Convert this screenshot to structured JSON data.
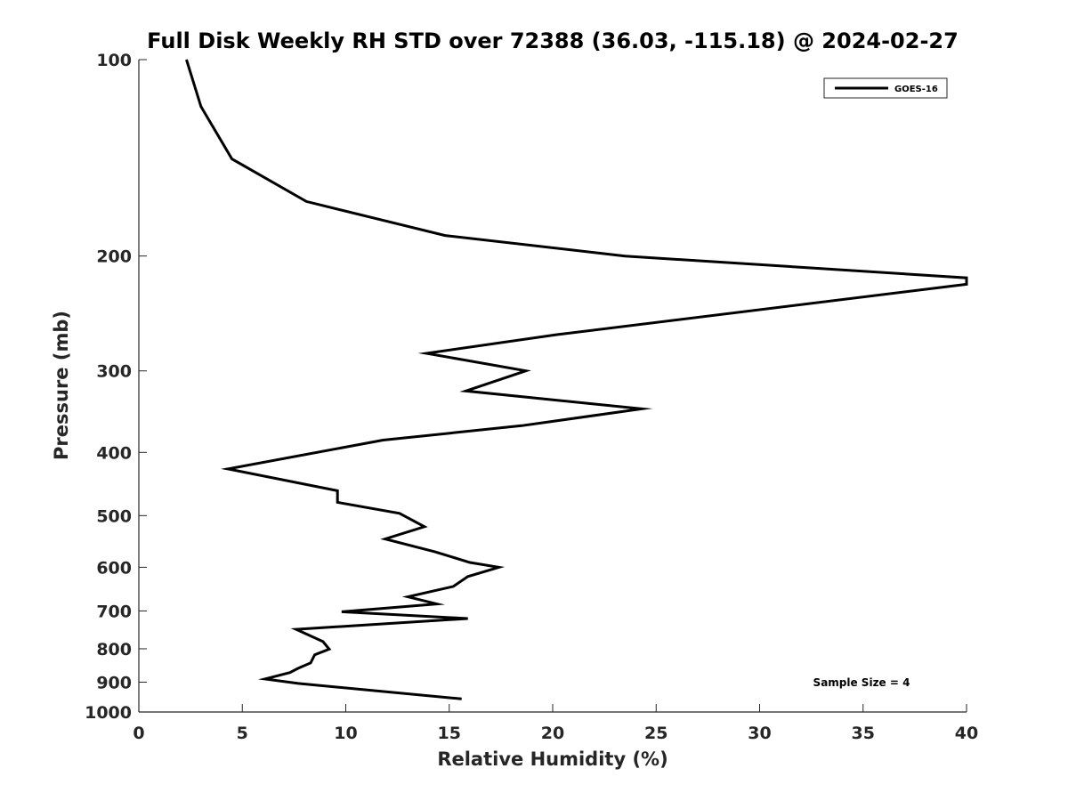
{
  "chart_data": {
    "type": "line",
    "title": "Full Disk Weekly RH STD over 72388 (36.03, -115.18) @ 2024-02-27",
    "xlabel": "Relative Humidity (%)",
    "ylabel": "Pressure (mb)",
    "xlim": [
      0,
      40
    ],
    "ylim": [
      100,
      1000
    ],
    "y_scale": "log",
    "y_reversed": true,
    "grid": false,
    "legend_position": "top-right",
    "x_ticks": [
      0,
      5,
      10,
      15,
      20,
      25,
      30,
      35,
      40
    ],
    "x_tick_labels": [
      "0",
      "5",
      "10",
      "15",
      "20",
      "25",
      "30",
      "35",
      "40"
    ],
    "y_ticks": [
      100,
      200,
      300,
      400,
      500,
      600,
      700,
      800,
      900,
      1000
    ],
    "y_tick_labels": [
      "100",
      "200",
      "300",
      "400",
      "500",
      "600",
      "700",
      "800",
      "900",
      "1000"
    ],
    "series": [
      {
        "name": "GOES-16",
        "color": "#000000",
        "x": [
          2.3,
          3.0,
          4.5,
          8.1,
          14.8,
          23.5,
          40.0,
          40.0,
          20.2,
          13.9,
          18.7,
          15.8,
          24.3,
          18.5,
          11.8,
          4.3,
          9.6,
          9.6,
          12.6,
          13.8,
          11.9,
          14.3,
          16.0,
          17.4,
          15.9,
          15.2,
          13.0,
          14.4,
          9.8,
          15.9,
          7.6,
          8.9,
          9.2,
          8.5,
          8.3,
          7.7,
          7.3,
          6.1,
          7.7,
          15.6
        ],
        "y": [
          100,
          118,
          142,
          165,
          186,
          200,
          216,
          221,
          264,
          282,
          300,
          322,
          343,
          364,
          383,
          424,
          458,
          477,
          496,
          520,
          543,
          568,
          590,
          600,
          620,
          642,
          666,
          683,
          702,
          719,
          747,
          780,
          801,
          817,
          841,
          857,
          870,
          890,
          904,
          955
        ]
      }
    ],
    "annotations": [
      "Sample Size = 4"
    ]
  }
}
